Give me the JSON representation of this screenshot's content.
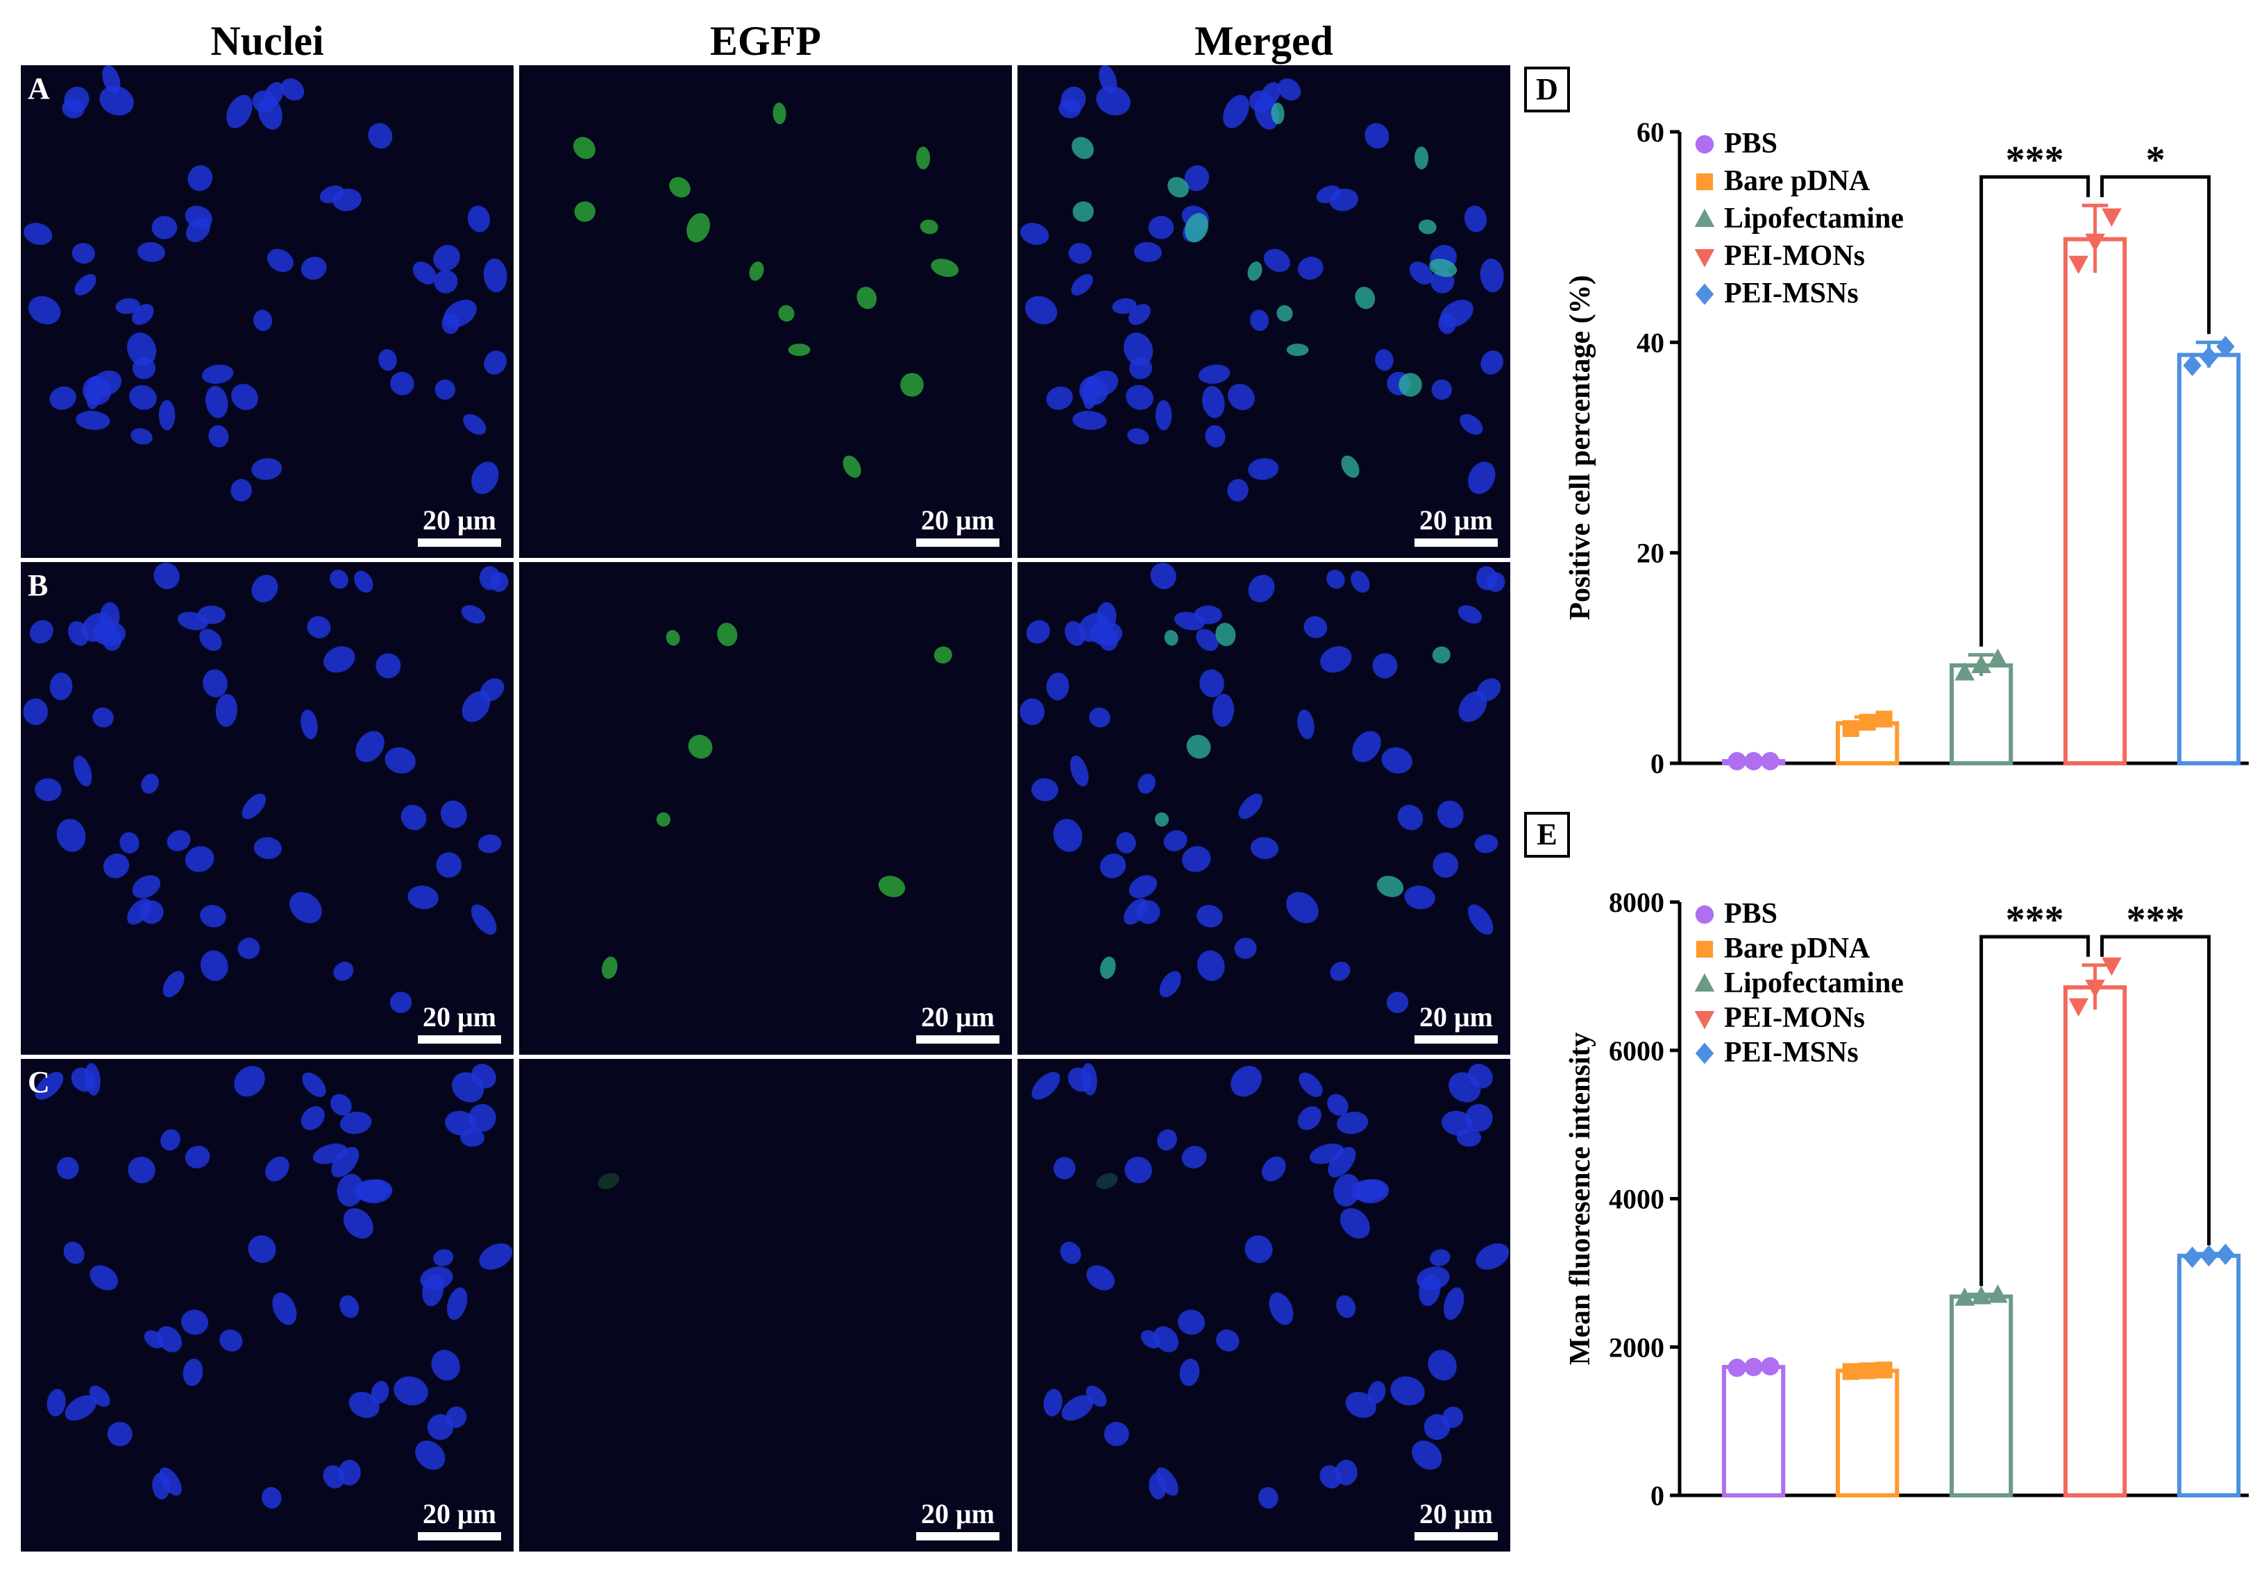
{
  "column_headers": [
    "Nuclei",
    "EGFP",
    "Merged"
  ],
  "row_labels": [
    "A",
    "B",
    "C"
  ],
  "scale_bar_label": "20 μm",
  "colors": {
    "PBS": "#b06ef0",
    "Bare pDNA": "#ff9a2e",
    "Lipofectamine": "#6b9a86",
    "PEI-MONs": "#f2695c",
    "PEI-MSNs": "#4d8fe0",
    "nuclei": "#1f35d8",
    "egfp": "#2fb53a",
    "background": "#05051e"
  },
  "chart_data": [
    {
      "panel": "D",
      "type": "bar",
      "categories": [
        "PBS",
        "Bare pDNA",
        "Lipofectamine",
        "PEI-MONs",
        "PEI-MSNs"
      ],
      "values": [
        0.2,
        3.8,
        9.3,
        49.8,
        38.8
      ],
      "errors": [
        0.1,
        0.6,
        1.0,
        3.2,
        1.2
      ],
      "points": [
        [
          0.2,
          0.2,
          0.2
        ],
        [
          3.3,
          3.9,
          4.2
        ],
        [
          8.6,
          9.3,
          9.9
        ],
        [
          47.5,
          49.6,
          52.0
        ],
        [
          37.8,
          38.6,
          39.6
        ]
      ],
      "markers": [
        "circle",
        "square",
        "triangle-up",
        "triangle-down",
        "diamond"
      ],
      "xlabel": "",
      "ylabel": "Positive cell percentage (%)",
      "ylim": [
        0,
        60
      ],
      "yticks": [
        "0",
        "20",
        "40",
        "60"
      ],
      "legend_position": "top-left",
      "significance": [
        {
          "from": "Lipofectamine",
          "to": "PEI-MONs",
          "label": "***"
        },
        {
          "from": "PEI-MONs",
          "to": "PEI-MSNs",
          "label": "*"
        }
      ],
      "grid": false
    },
    {
      "panel": "E",
      "type": "bar",
      "categories": [
        "PBS",
        "Bare pDNA",
        "Lipofectamine",
        "PEI-MONs",
        "PEI-MSNs"
      ],
      "values": [
        1730,
        1680,
        2680,
        6850,
        3230
      ],
      "errors": [
        30,
        30,
        30,
        300,
        30
      ],
      "points": [
        [
          1720,
          1730,
          1740
        ],
        [
          1670,
          1680,
          1690
        ],
        [
          2660,
          2680,
          2700
        ],
        [
          6600,
          6850,
          7150
        ],
        [
          3210,
          3230,
          3250
        ]
      ],
      "markers": [
        "circle",
        "square",
        "triangle-up",
        "triangle-down",
        "diamond"
      ],
      "xlabel": "",
      "ylabel": "Mean fluoresence intensity",
      "ylim": [
        0,
        8000
      ],
      "yticks": [
        "0",
        "2000",
        "4000",
        "6000",
        "8000"
      ],
      "legend_position": "top-left",
      "significance": [
        {
          "from": "Lipofectamine",
          "to": "PEI-MONs",
          "label": "***"
        },
        {
          "from": "PEI-MONs",
          "to": "PEI-MSNs",
          "label": "***"
        }
      ],
      "grid": false
    }
  ]
}
